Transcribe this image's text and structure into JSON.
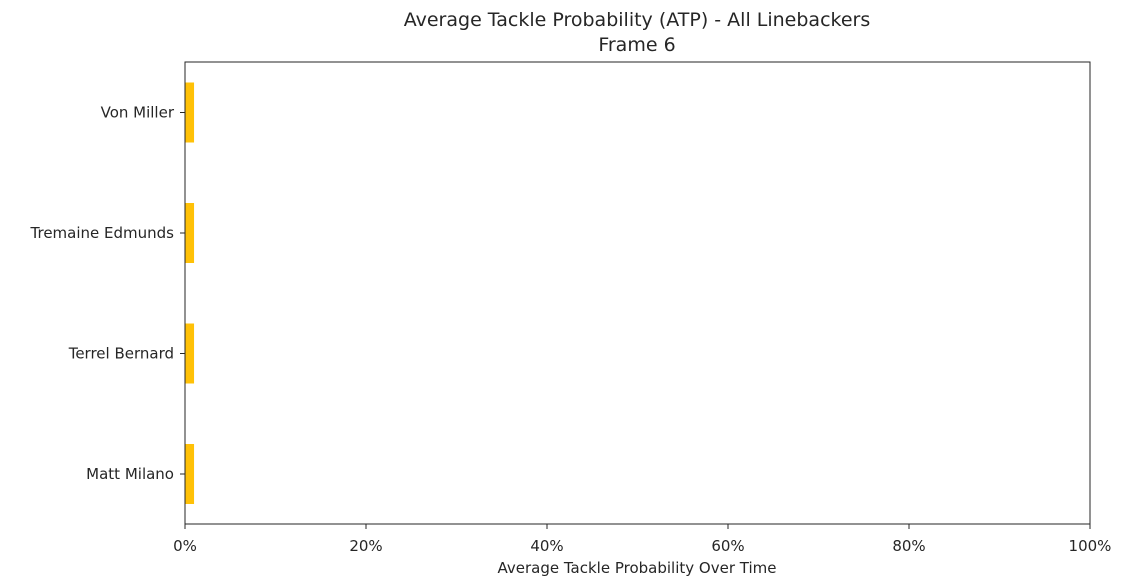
{
  "chart_data": {
    "type": "bar",
    "orientation": "horizontal",
    "title": "Average Tackle Probability (ATP) - All Linebackers",
    "subtitle": "Frame 6",
    "xlabel": "Average Tackle Probability Over Time",
    "ylabel": "",
    "categories": [
      "Von Miller",
      "Tremaine Edmunds",
      "Terrel Bernard",
      "Matt Milano"
    ],
    "values": [
      0.01,
      0.01,
      0.01,
      0.01
    ],
    "xlim": [
      0,
      1
    ],
    "xticks": [
      0,
      0.2,
      0.4,
      0.6,
      0.8,
      1.0
    ],
    "xtick_labels": [
      "0%",
      "20%",
      "40%",
      "60%",
      "80%",
      "100%"
    ],
    "bar_color": "#ffc107",
    "grid": false,
    "legend": "none"
  }
}
